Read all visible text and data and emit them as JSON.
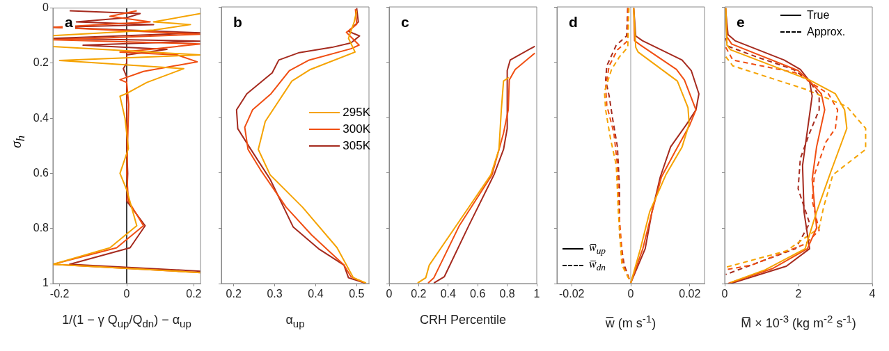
{
  "chart_data": [
    {
      "type": "line",
      "title": "a",
      "xlabel": "1/(1 − γ Q$_{up}$/Q$_{dn}$) − α$_{up}$",
      "ylabel": "σ$_{h}$",
      "xlim": [
        -0.22,
        0.22
      ],
      "xticks": [
        -0.2,
        0,
        0.2
      ],
      "ylim": [
        1,
        0
      ],
      "yticks": [
        0,
        0.2,
        0.4,
        0.6,
        0.8,
        1
      ],
      "ref_lines": [
        {
          "axis": "x",
          "value": 0,
          "color": "#000000"
        }
      ],
      "series": [
        {
          "color": "#f5a300",
          "x": [
            0.22,
            0.08,
            0.19,
            0.08,
            -0.22,
            -0.22,
            0.22,
            -0.2,
            0.17,
            0.06,
            0,
            -0.02,
            -0.005,
            0.005,
            -0.02,
            0,
            0.03,
            -0.05,
            -0.22,
            0.22
          ],
          "values": [
            0.02,
            0.05,
            0.06,
            0.08,
            0.1,
            0.14,
            0.17,
            0.19,
            0.22,
            0.27,
            0.31,
            0.32,
            0.4,
            0.51,
            0.6,
            0.66,
            0.79,
            0.87,
            0.93,
            0.96
          ]
        },
        {
          "color": "#f04e12",
          "x": [
            0.03,
            -0.05,
            0.07,
            -0.22,
            0.22,
            -0.22,
            0.22,
            0.07,
            -0.02,
            0.15,
            0.21,
            0.05,
            -0.02,
            0,
            0.006,
            0,
            0.005,
            0.05,
            -0.03,
            -0.22,
            0.22
          ],
          "values": [
            0.01,
            0.03,
            0.05,
            0.07,
            0.095,
            0.115,
            0.13,
            0.15,
            0.16,
            0.17,
            0.195,
            0.23,
            0.26,
            0.27,
            0.35,
            0.6,
            0.7,
            0.79,
            0.87,
            0.93,
            0.96
          ]
        },
        {
          "color": "#a52a1e",
          "x": [
            -0.17,
            0.04,
            0,
            -0.15,
            0.08,
            -0.22,
            0.22,
            -0.22,
            0.22,
            -0.13,
            0.12,
            0,
            0,
            -0.01,
            0,
            0,
            0.003,
            0,
            0.055,
            0.01,
            -0.17,
            0.22
          ],
          "values": [
            0.01,
            0.02,
            0.035,
            0.05,
            0.06,
            0.07,
            0.09,
            0.11,
            0.12,
            0.135,
            0.15,
            0.17,
            0.2,
            0.22,
            0.25,
            0.5,
            0.6,
            0.7,
            0.79,
            0.87,
            0.93,
            0.955
          ]
        }
      ]
    },
    {
      "type": "line",
      "title": "b",
      "xlabel": "α$_{up}$",
      "legend": "right",
      "tick_labels": "x",
      "xlim": [
        0.17,
        0.53
      ],
      "xticks": [
        0.2,
        0.3,
        0.4,
        0.5
      ],
      "ylim": [
        1,
        0
      ],
      "yticks": [
        0,
        0.2,
        0.4,
        0.6,
        0.8,
        1
      ],
      "series": [
        {
          "name": "295K",
          "color": "#f5a300",
          "x": [
            0.5,
            0.494,
            0.48,
            0.496,
            0.387,
            0.342,
            0.277,
            0.26,
            0.289,
            0.368,
            0.452,
            0.492,
            0.523
          ],
          "values": [
            0.013,
            0.054,
            0.113,
            0.163,
            0.226,
            0.268,
            0.414,
            0.515,
            0.607,
            0.724,
            0.87,
            0.979,
            0.998
          ]
        },
        {
          "name": "300K",
          "color": "#f04e12",
          "x": [
            0.497,
            0.5,
            0.475,
            0.506,
            0.486,
            0.384,
            0.336,
            0.291,
            0.246,
            0.227,
            0.235,
            0.266,
            0.328,
            0.39,
            0.469,
            0.486,
            0.52
          ],
          "values": [
            0.008,
            0.063,
            0.092,
            0.138,
            0.151,
            0.192,
            0.23,
            0.314,
            0.372,
            0.435,
            0.515,
            0.59,
            0.724,
            0.824,
            0.933,
            0.975,
            0.998
          ]
        },
        {
          "name": "305K",
          "color": "#a52a1e",
          "x": [
            0.5,
            0.504,
            0.48,
            0.507,
            0.486,
            0.44,
            0.36,
            0.31,
            0.294,
            0.232,
            0.207,
            0.21,
            0.238,
            0.289,
            0.345,
            0.407,
            0.469,
            0.48,
            0.52
          ],
          "values": [
            0.004,
            0.054,
            0.088,
            0.105,
            0.13,
            0.146,
            0.165,
            0.192,
            0.238,
            0.314,
            0.372,
            0.44,
            0.506,
            0.623,
            0.795,
            0.874,
            0.933,
            0.979,
            0.998
          ]
        }
      ]
    },
    {
      "type": "line",
      "title": "c",
      "xlabel": "CRH Percentile",
      "tick_labels": "x",
      "xlim": [
        0,
        1
      ],
      "xticks": [
        0,
        0.2,
        0.4,
        0.6,
        0.8,
        1
      ],
      "ylim": [
        1,
        0
      ],
      "yticks": [
        0,
        0.2,
        0.4,
        0.6,
        0.8,
        1
      ],
      "series": [
        {
          "color": "#f5a300",
          "x": [
            0.81,
            0.775,
            0.76,
            0.744,
            0.689,
            0.476,
            0.272,
            0.248,
            0.193
          ],
          "values": [
            0.255,
            0.268,
            0.372,
            0.515,
            0.607,
            0.774,
            0.933,
            0.979,
            0.998
          ]
        },
        {
          "color": "#f04e12",
          "x": [
            0.987,
            0.854,
            0.814,
            0.807,
            0.775,
            0.697,
            0.476,
            0.303,
            0.264
          ],
          "values": [
            0.167,
            0.226,
            0.264,
            0.372,
            0.456,
            0.607,
            0.79,
            0.979,
            0.998
          ]
        },
        {
          "color": "#a52a1e",
          "x": [
            0.987,
            0.82,
            0.8,
            0.8,
            0.775,
            0.71,
            0.54,
            0.374,
            0.303
          ],
          "values": [
            0.142,
            0.192,
            0.23,
            0.439,
            0.515,
            0.607,
            0.79,
            0.975,
            0.998
          ]
        }
      ]
    },
    {
      "type": "line",
      "title": "d",
      "xlabel": "w̅ (m s$^{-1}$)",
      "tick_labels": "x",
      "annotations": [
        "w̅$_{up}$",
        "w̅$_{dn}$"
      ],
      "xlim": [
        -0.025,
        0.025
      ],
      "xticks": [
        -0.02,
        0,
        0.02
      ],
      "ylim": [
        1,
        0
      ],
      "yticks": [
        0,
        0.2,
        0.4,
        0.6,
        0.8,
        1
      ],
      "ref_lines": [
        {
          "axis": "x",
          "value": 0,
          "color": "#bbbbbb"
        }
      ],
      "series": [
        {
          "color": "#f5a300",
          "x": [
            0.001,
            0.0017,
            0.0025,
            0.0158,
            0.0194,
            0.0198,
            0.0174,
            0.0119,
            0.0064,
            0.0033,
            0
          ],
          "values": [
            0.004,
            0.146,
            0.163,
            0.268,
            0.364,
            0.423,
            0.506,
            0.607,
            0.741,
            0.874,
            0.998
          ]
        },
        {
          "color": "#f04e12",
          "x": [
            0.001,
            0.0013,
            0.0033,
            0.0155,
            0.0182,
            0.0221,
            0.0198,
            0.015,
            0.0104,
            0.0072,
            0.0041,
            0
          ],
          "values": [
            0.004,
            0.122,
            0.138,
            0.226,
            0.264,
            0.372,
            0.431,
            0.523,
            0.615,
            0.741,
            0.874,
            0.998
          ]
        },
        {
          "color": "#a52a1e",
          "x": [
            0.001,
            0.0017,
            0.004,
            0.0174,
            0.0205,
            0.0231,
            0.0221,
            0.019,
            0.0135,
            0.01,
            0.0072,
            0.0049,
            0
          ],
          "values": [
            0.004,
            0.105,
            0.122,
            0.192,
            0.23,
            0.314,
            0.372,
            0.423,
            0.506,
            0.615,
            0.741,
            0.874,
            0.998
          ]
        },
        {
          "color": "#f5a300",
          "line_style": "dashed",
          "x": [
            -0.0006,
            -0.001,
            -0.0038,
            -0.0065,
            -0.0089,
            -0.0085,
            -0.0069,
            -0.0049,
            -0.0042,
            -0.003,
            -0.0002
          ],
          "values": [
            0.004,
            0.146,
            0.18,
            0.226,
            0.306,
            0.372,
            0.473,
            0.573,
            0.741,
            0.933,
            0.992
          ]
        },
        {
          "color": "#f04e12",
          "line_style": "dashed",
          "x": [
            -0.001,
            -0.001,
            -0.0045,
            -0.0073,
            -0.0085,
            -0.0081,
            -0.0057,
            -0.0045,
            -0.004,
            -0.0026,
            -0.0002
          ],
          "values": [
            0.004,
            0.122,
            0.155,
            0.213,
            0.289,
            0.356,
            0.456,
            0.573,
            0.741,
            0.933,
            0.992
          ]
        },
        {
          "color": "#a52a1e",
          "line_style": "dashed",
          "x": [
            -0.001,
            -0.0014,
            -0.0049,
            -0.0081,
            -0.0085,
            -0.0073,
            -0.0061,
            -0.0045,
            -0.0038,
            -0.0038,
            -0.0022,
            -0.0002
          ],
          "values": [
            0.004,
            0.105,
            0.138,
            0.213,
            0.264,
            0.322,
            0.406,
            0.506,
            0.657,
            0.824,
            0.933,
            0.992
          ]
        }
      ]
    },
    {
      "type": "line",
      "title": "e",
      "xlabel": "M̅ × 10$^{-3}$ (kg m$^{-2}$ s$^{-1}$)",
      "tick_labels": "x",
      "annotations": [
        "True",
        "Approx."
      ],
      "xlim": [
        0,
        4
      ],
      "xticks": [
        0,
        2,
        4
      ],
      "ylim": [
        1,
        0
      ],
      "yticks": [
        0,
        0.2,
        0.4,
        0.6,
        0.8,
        1
      ],
      "series": [
        {
          "color": "#f5a300",
          "x": [
            0.03,
            0.06,
            0.16,
            2.3,
            3.0,
            3.25,
            3.31,
            2.87,
            2.49,
            2.18,
            1.1,
            0.16
          ],
          "values": [
            0.004,
            0.138,
            0.155,
            0.264,
            0.314,
            0.372,
            0.439,
            0.598,
            0.741,
            0.874,
            0.95,
            0.996
          ]
        },
        {
          "color": "#f04e12",
          "x": [
            0.03,
            0.06,
            0.19,
            1.99,
            2.3,
            2.62,
            2.71,
            2.49,
            2.37,
            2.49,
            2.24,
            1.29,
            0.09
          ],
          "values": [
            0.004,
            0.108,
            0.134,
            0.23,
            0.268,
            0.314,
            0.372,
            0.506,
            0.623,
            0.799,
            0.874,
            0.946,
            1
          ]
        },
        {
          "color": "#a52a1e",
          "x": [
            0.02,
            0.09,
            0.28,
            1.61,
            2.05,
            2.3,
            2.37,
            2.11,
            2.15,
            2.3,
            1.67,
            0.16
          ],
          "values": [
            0.004,
            0.1,
            0.122,
            0.192,
            0.226,
            0.268,
            0.322,
            0.573,
            0.741,
            0.874,
            0.937,
            1
          ]
        },
        {
          "color": "#f5a300",
          "line_style": "dashed",
          "x": [
            0.03,
            0.22,
            2.18,
            3.31,
            3.82,
            3.82,
            2.93,
            2.68,
            2.56,
            1.67,
            0.03
          ],
          "values": [
            0.18,
            0.213,
            0.297,
            0.36,
            0.439,
            0.515,
            0.607,
            0.724,
            0.799,
            0.882,
            0.941
          ]
        },
        {
          "color": "#f04e12",
          "line_style": "dashed",
          "x": [
            0.03,
            0.22,
            1.92,
            2.81,
            3.06,
            3.0,
            2.74,
            2.43,
            2.37,
            2.56,
            2.18,
            0.73,
            0.03
          ],
          "values": [
            0.146,
            0.192,
            0.238,
            0.314,
            0.372,
            0.439,
            0.489,
            0.607,
            0.699,
            0.808,
            0.857,
            0.933,
            0.95
          ]
        },
        {
          "color": "#a52a1e",
          "line_style": "dashed",
          "x": [
            0.03,
            0.09,
            0.85,
            1.86,
            2.3,
            2.56,
            2.56,
            2.3,
            2.05,
            1.99,
            2.3,
            1.92,
            0.03
          ],
          "values": [
            0.113,
            0.142,
            0.18,
            0.226,
            0.268,
            0.322,
            0.372,
            0.456,
            0.548,
            0.657,
            0.782,
            0.874,
            0.967
          ]
        }
      ]
    }
  ]
}
